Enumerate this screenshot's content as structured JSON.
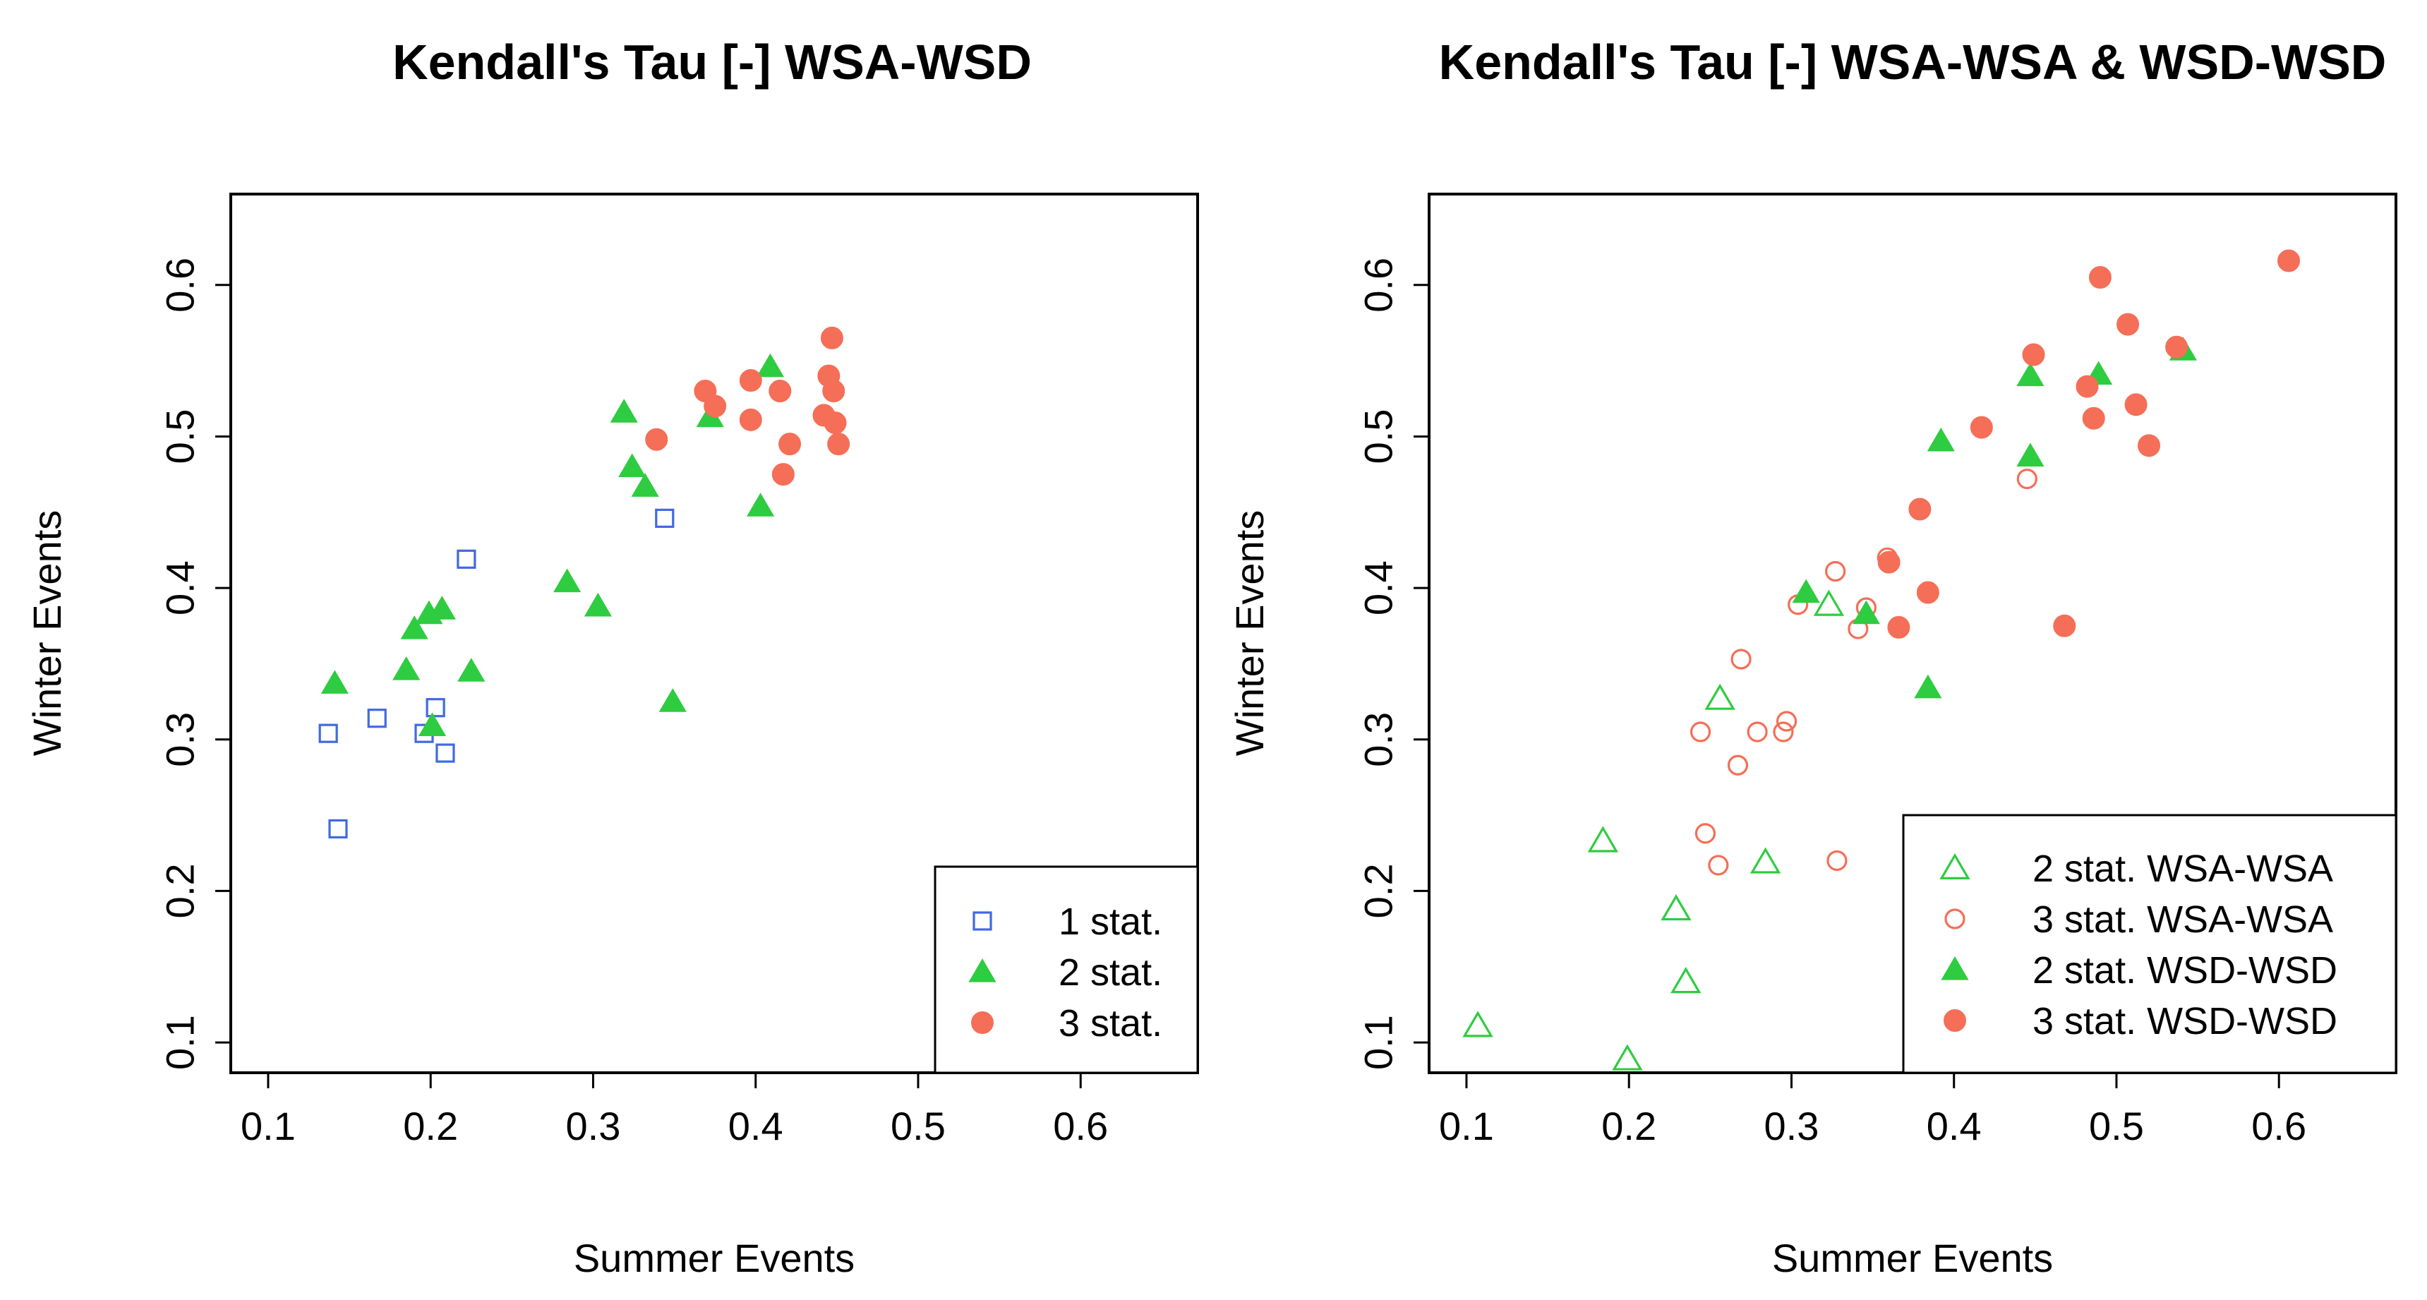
{
  "chart_data": [
    {
      "type": "scatter",
      "title": "Kendall's Tau [-] WSA-WSD",
      "xlabel": "Summer Events",
      "ylabel": "Winter Events",
      "xlim": [
        0.077,
        0.672
      ],
      "ylim": [
        0.08,
        0.66
      ],
      "xticks": [
        "0.1",
        "0.2",
        "0.3",
        "0.4",
        "0.5",
        "0.6"
      ],
      "yticks": [
        "0.1",
        "0.2",
        "0.3",
        "0.4",
        "0.5",
        "0.6"
      ],
      "legend_position": "bottom-right",
      "series": [
        {
          "name": "1 stat.",
          "marker": "open-square",
          "color": "#4169e1",
          "points": [
            [
              0.137,
              0.304
            ],
            [
              0.143,
              0.241
            ],
            [
              0.167,
              0.314
            ],
            [
              0.196,
              0.304
            ],
            [
              0.203,
              0.321
            ],
            [
              0.209,
              0.291
            ],
            [
              0.222,
              0.419
            ],
            [
              0.344,
              0.446
            ]
          ]
        },
        {
          "name": "2 stat.",
          "marker": "filled-triangle",
          "color": "#2ecc40",
          "points": [
            [
              0.141,
              0.337
            ],
            [
              0.185,
              0.346
            ],
            [
              0.19,
              0.373
            ],
            [
              0.199,
              0.383
            ],
            [
              0.201,
              0.309
            ],
            [
              0.207,
              0.386
            ],
            [
              0.225,
              0.345
            ],
            [
              0.284,
              0.404
            ],
            [
              0.303,
              0.388
            ],
            [
              0.319,
              0.516
            ],
            [
              0.324,
              0.48
            ],
            [
              0.332,
              0.467
            ],
            [
              0.349,
              0.325
            ],
            [
              0.372,
              0.513
            ],
            [
              0.403,
              0.454
            ],
            [
              0.409,
              0.546
            ]
          ]
        },
        {
          "name": "3 stat.",
          "marker": "filled-circle",
          "color": "#f56e57",
          "points": [
            [
              0.339,
              0.498
            ],
            [
              0.369,
              0.53
            ],
            [
              0.375,
              0.52
            ],
            [
              0.397,
              0.511
            ],
            [
              0.397,
              0.537
            ],
            [
              0.415,
              0.53
            ],
            [
              0.417,
              0.475
            ],
            [
              0.421,
              0.495
            ],
            [
              0.442,
              0.514
            ],
            [
              0.445,
              0.54
            ],
            [
              0.447,
              0.565
            ],
            [
              0.448,
              0.53
            ],
            [
              0.449,
              0.509
            ],
            [
              0.451,
              0.495
            ]
          ]
        }
      ]
    },
    {
      "type": "scatter",
      "title": "Kendall's Tau [-] WSA-WSA & WSD-WSD",
      "xlabel": "Summer Events",
      "ylabel": "Winter Events",
      "xlim": [
        0.077,
        0.672
      ],
      "ylim": [
        0.08,
        0.66
      ],
      "xticks": [
        "0.1",
        "0.2",
        "0.3",
        "0.4",
        "0.5",
        "0.6"
      ],
      "yticks": [
        "0.1",
        "0.2",
        "0.3",
        "0.4",
        "0.5",
        "0.6"
      ],
      "legend_position": "bottom-right",
      "series": [
        {
          "name": "2 stat. WSA-WSA",
          "marker": "open-triangle",
          "color": "#2ecc40",
          "points": [
            [
              0.107,
              0.111
            ],
            [
              0.184,
              0.233
            ],
            [
              0.199,
              0.089
            ],
            [
              0.229,
              0.188
            ],
            [
              0.235,
              0.14
            ],
            [
              0.256,
              0.327
            ],
            [
              0.284,
              0.219
            ],
            [
              0.323,
              0.389
            ]
          ]
        },
        {
          "name": "3 stat. WSA-WSA",
          "marker": "open-circle",
          "color": "#f56e57",
          "points": [
            [
              0.244,
              0.305
            ],
            [
              0.247,
              0.238
            ],
            [
              0.255,
              0.217
            ],
            [
              0.267,
              0.283
            ],
            [
              0.269,
              0.353
            ],
            [
              0.279,
              0.305
            ],
            [
              0.295,
              0.305
            ],
            [
              0.297,
              0.312
            ],
            [
              0.304,
              0.389
            ],
            [
              0.327,
              0.411
            ],
            [
              0.328,
              0.22
            ],
            [
              0.341,
              0.373
            ],
            [
              0.346,
              0.387
            ],
            [
              0.359,
              0.42
            ],
            [
              0.445,
              0.472
            ]
          ]
        },
        {
          "name": "2 stat. WSD-WSD",
          "marker": "filled-triangle",
          "color": "#2ecc40",
          "points": [
            [
              0.309,
              0.397
            ],
            [
              0.346,
              0.383
            ],
            [
              0.384,
              0.334
            ],
            [
              0.392,
              0.497
            ],
            [
              0.447,
              0.54
            ],
            [
              0.447,
              0.487
            ],
            [
              0.489,
              0.541
            ],
            [
              0.541,
              0.557
            ]
          ]
        },
        {
          "name": "3 stat. WSD-WSD",
          "marker": "filled-circle",
          "color": "#f56e57",
          "points": [
            [
              0.36,
              0.417
            ],
            [
              0.366,
              0.374
            ],
            [
              0.379,
              0.452
            ],
            [
              0.384,
              0.397
            ],
            [
              0.417,
              0.506
            ],
            [
              0.449,
              0.554
            ],
            [
              0.468,
              0.375
            ],
            [
              0.482,
              0.533
            ],
            [
              0.486,
              0.512
            ],
            [
              0.49,
              0.605
            ],
            [
              0.507,
              0.574
            ],
            [
              0.512,
              0.521
            ],
            [
              0.52,
              0.494
            ],
            [
              0.537,
              0.559
            ],
            [
              0.606,
              0.616
            ]
          ]
        }
      ]
    }
  ]
}
